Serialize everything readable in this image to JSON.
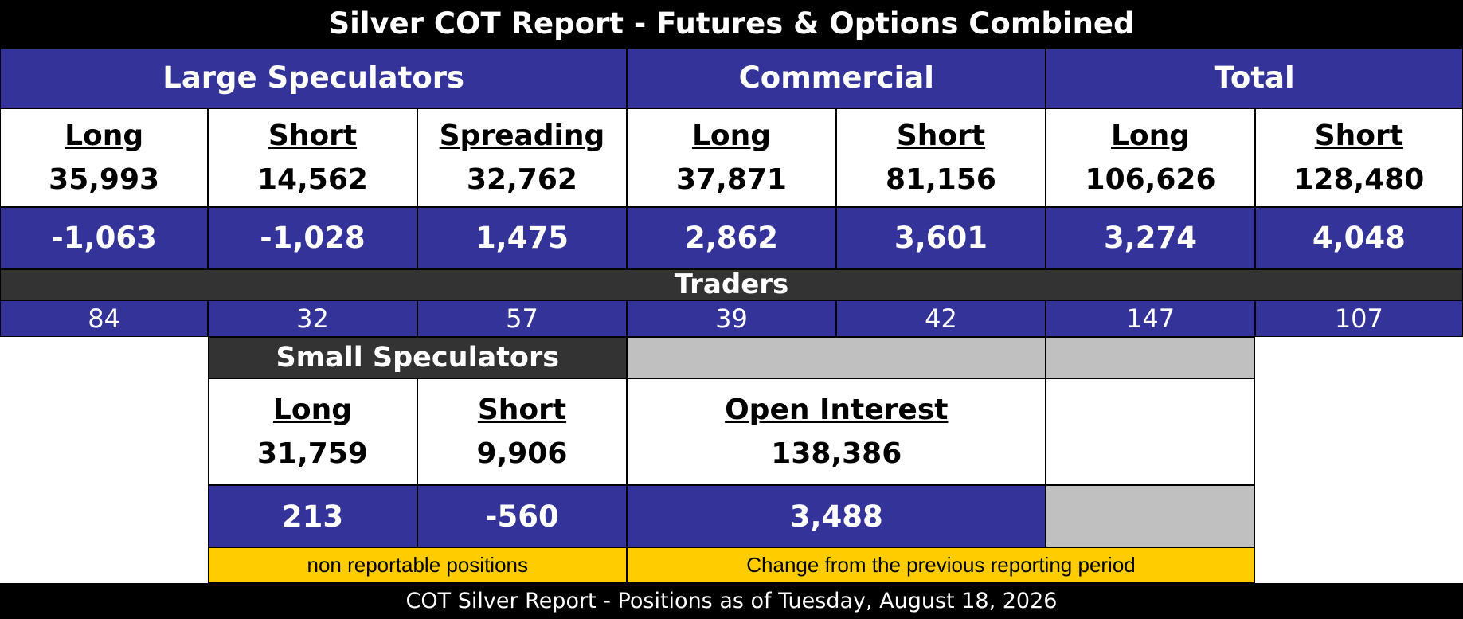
{
  "title": "Silver COT Report - Futures & Options Combined",
  "groups": [
    "Large Speculators",
    "Commercial",
    "Total"
  ],
  "columns": [
    {
      "label": "Long",
      "value": "35,993",
      "change": "-1,063",
      "traders": "84"
    },
    {
      "label": "Short",
      "value": "14,562",
      "change": "-1,028",
      "traders": "32"
    },
    {
      "label": "Spreading",
      "value": "32,762",
      "change": "1,475",
      "traders": "57"
    },
    {
      "label": "Long",
      "value": "37,871",
      "change": "2,862",
      "traders": "39"
    },
    {
      "label": "Short",
      "value": "81,156",
      "change": "3,601",
      "traders": "42"
    },
    {
      "label": "Long",
      "value": "106,626",
      "change": "3,274",
      "traders": "147"
    },
    {
      "label": "Short",
      "value": "128,480",
      "change": "4,048",
      "traders": "107"
    }
  ],
  "traders_label": "Traders",
  "small_speculators": {
    "title": "Small Speculators",
    "columns": [
      {
        "label": "Long",
        "value": "31,759",
        "change": "213"
      },
      {
        "label": "Short",
        "value": "9,906",
        "change": "-560"
      }
    ]
  },
  "open_interest": {
    "label": "Open Interest",
    "value": "138,386",
    "change": "3,488"
  },
  "notes": [
    "non reportable positions",
    "Change from the previous reporting period"
  ],
  "footer": "COT Silver Report - Positions as of Tuesday, August 18, 2026"
}
